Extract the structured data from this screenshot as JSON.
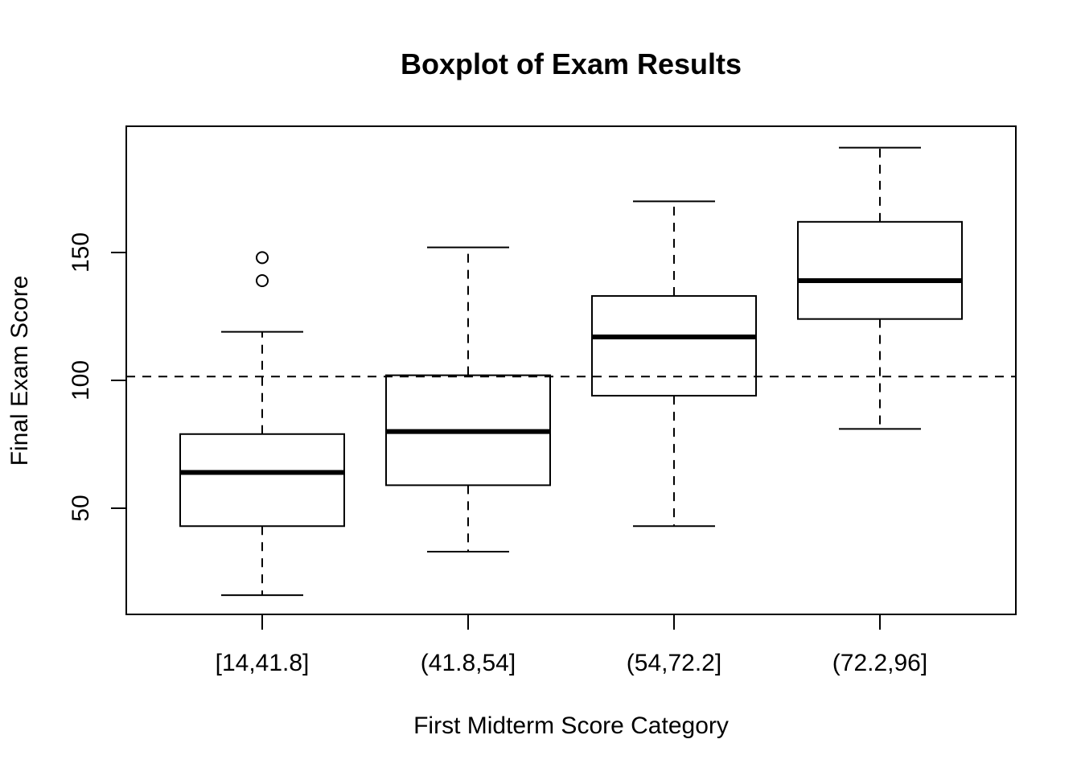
{
  "chart_data": {
    "type": "boxplot",
    "title": "Boxplot of Exam Results",
    "xlabel": "First Midterm Score Category",
    "ylabel": "Final Exam Score",
    "categories": [
      "[14,41.8]",
      "(41.8,54]",
      "(54,72.2]",
      "(72.2,96]"
    ],
    "boxes": [
      {
        "category": "[14,41.8]",
        "whisker_low": 16,
        "q1": 43,
        "median": 64,
        "q3": 79,
        "whisker_high": 119,
        "outliers": [
          139,
          148
        ]
      },
      {
        "category": "(41.8,54]",
        "whisker_low": 33,
        "q1": 59,
        "median": 80,
        "q3": 102,
        "whisker_high": 152,
        "outliers": []
      },
      {
        "category": "(54,72.2]",
        "whisker_low": 43,
        "q1": 94,
        "median": 117,
        "q3": 133,
        "whisker_high": 170,
        "outliers": []
      },
      {
        "category": "(72.2,96]",
        "whisker_low": 81,
        "q1": 124,
        "median": 139,
        "q3": 162,
        "whisker_high": 191,
        "outliers": []
      }
    ],
    "reference_line": {
      "y": 101.5,
      "style": "dashed",
      "orientation": "horizontal"
    },
    "yticks": [
      50,
      100,
      150
    ],
    "ylim": [
      7,
      197
    ],
    "grid": false,
    "legend": "none"
  }
}
